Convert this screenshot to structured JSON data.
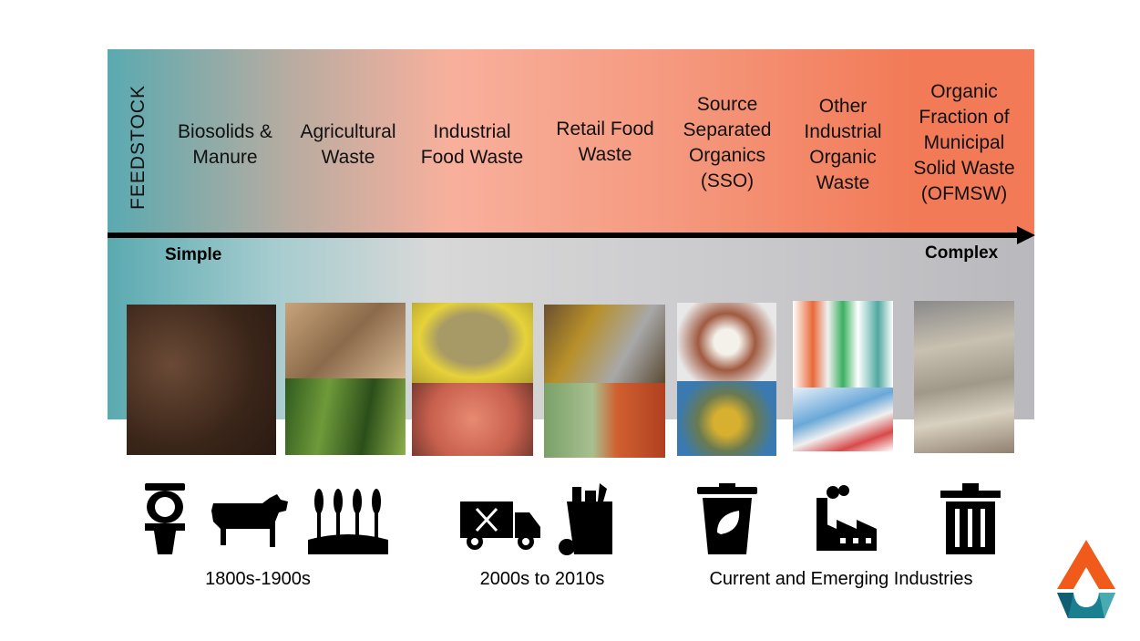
{
  "axis_title": "FEEDSTOCK",
  "categories": [
    "Biosolids &\nManure",
    "Agricultural\nWaste",
    "Industrial\nFood Waste",
    "Retail Food\nWaste",
    "Source\nSeparated\nOrganics\n(SSO)",
    "Other\nIndustrial\nOrganic\nWaste",
    "Organic\nFraction of\nMunicipal\nSolid Waste\n(OFMSW)"
  ],
  "scale": {
    "start": "Simple",
    "end": "Complex"
  },
  "eras": [
    "1800s-1900s",
    "2000s to 2010s",
    "Current and Emerging Industries"
  ],
  "icons": [
    "toilet-icon",
    "cow-icon",
    "wheat-field-icon",
    "food-truck-icon",
    "grocery-bag-icon",
    "compost-bin-icon",
    "factory-icon",
    "trash-can-icon"
  ],
  "colors": {
    "teal": "#5aaab0",
    "salmon": "#f8b09c",
    "orange": "#f27a57",
    "logo_orange": "#f05a1a",
    "logo_teal": "#1a7f8f"
  }
}
